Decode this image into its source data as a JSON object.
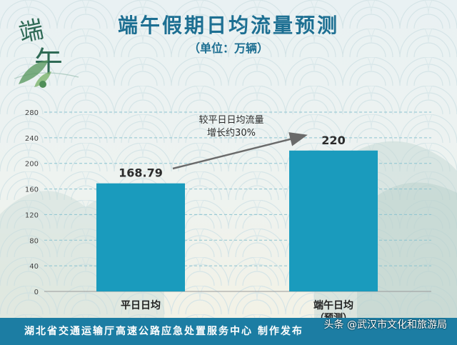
{
  "header": {
    "title": "端午假期日均流量预测",
    "subtitle": "（单位：万辆）"
  },
  "logo": {
    "char1": "端",
    "char2": "午"
  },
  "chart_data": {
    "type": "bar",
    "categories": [
      "平日日均",
      "端午日均"
    ],
    "category_sublabels": [
      "",
      "（预测）"
    ],
    "values": [
      168.79,
      220
    ],
    "value_labels": [
      "168.79",
      "220"
    ],
    "ylim": [
      0,
      280
    ],
    "yticks": [
      0,
      40,
      80,
      120,
      160,
      200,
      240,
      280
    ],
    "grid": true,
    "annotation": {
      "line1": "较平日日均流量",
      "line2": "增长约30%"
    },
    "colors": {
      "bar": "#1a9bbd",
      "arrow": "#6a6a6a",
      "value_label": "#2b2b2b"
    }
  },
  "footer": {
    "org_text": "湖北省交通运输厅高速公路应急处置服务中心 制作发布",
    "source": "头条 @武汉市文化和旅游局"
  }
}
